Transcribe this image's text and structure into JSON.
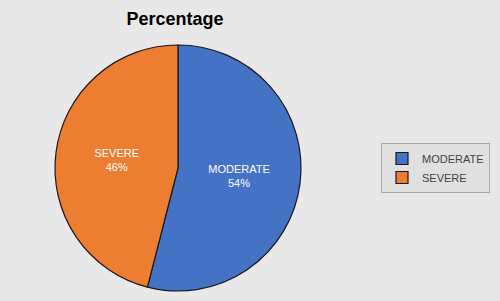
{
  "chart_data": {
    "type": "pie",
    "title": "Percentage",
    "categories": [
      "MODERATE",
      "SEVERE"
    ],
    "values": [
      54,
      46
    ],
    "value_labels": [
      "54%",
      "46%"
    ],
    "colors": [
      "#4472C4",
      "#ED7D31"
    ],
    "data_labels": true,
    "legend": "right"
  }
}
